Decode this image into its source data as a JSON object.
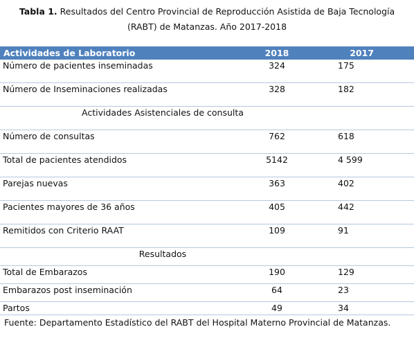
{
  "caption": {
    "label": "Tabla 1.",
    "text": "Resultados del Centro Provincial de Reproducción Asistida de Baja Tecnología",
    "line2": "(RABT) de Matanzas. Año 2017-2018"
  },
  "table": {
    "headers": [
      "Actividades de Laboratorio",
      "2018",
      "2017"
    ],
    "rows": [
      {
        "label": "Número de pacientes inseminadas",
        "v2018": "324",
        "v2017": "175"
      },
      {
        "label": "Número de Inseminaciones realizadas",
        "v2018": "328",
        "v2017": "182"
      },
      {
        "section": "Actividades Asistenciales de consulta"
      },
      {
        "label": "Número de consultas",
        "v2018": "762",
        "v2017": "618"
      },
      {
        "label": "Total de pacientes atendidos",
        "v2018": "5142",
        "v2017": "4 599"
      },
      {
        "label": "Parejas nuevas",
        "v2018": "363",
        "v2017": "402"
      },
      {
        "label": "Pacientes mayores de 36 años",
        "v2018": "405",
        "v2017": "442"
      },
      {
        "label": "Remitidos con Criterio RAAT",
        "v2018": "109",
        "v2017": "91"
      },
      {
        "section": "Resultados"
      },
      {
        "label": "Total de Embarazos",
        "v2018": "190",
        "v2017": "129"
      },
      {
        "label": "Embarazos post inseminación",
        "v2018": "64",
        "v2017": "23"
      },
      {
        "label": "Partos",
        "v2018": "49",
        "v2017": "34"
      }
    ]
  },
  "source": "Fuente: Departamento Estadístico del RABT del Hospital Materno Provincial de Matanzas."
}
